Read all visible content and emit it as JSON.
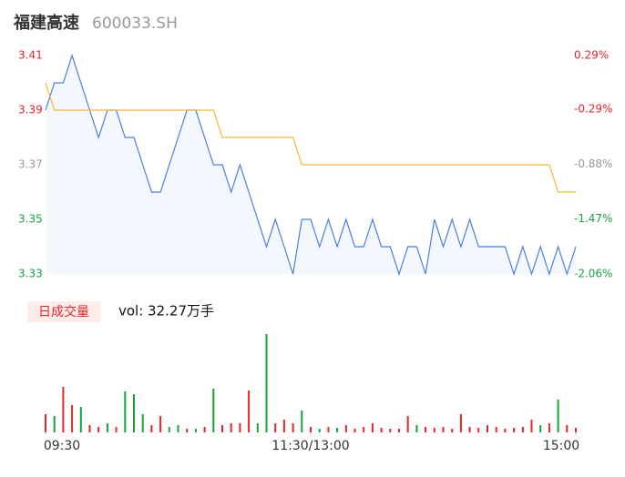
{
  "header": {
    "name": "福建高速",
    "code": "600033.SH"
  },
  "chart_data": [
    {
      "type": "line",
      "x": [
        0,
        4,
        8,
        12,
        16,
        20,
        24,
        28,
        32,
        36,
        40,
        44,
        48,
        52,
        56,
        60,
        64,
        68,
        72,
        76,
        80,
        84,
        88,
        92,
        96,
        100,
        104,
        108,
        112,
        116,
        120,
        124,
        128,
        132,
        136,
        140,
        144,
        148,
        152,
        156,
        160,
        164,
        168,
        172,
        176,
        180,
        184,
        188,
        192,
        196,
        200,
        204,
        208,
        212,
        216,
        220,
        224,
        228,
        232,
        236,
        240
      ],
      "series": [
        {
          "name": "price",
          "color": "#4a7fe0",
          "fill": "#f4f7fd",
          "values": [
            3.39,
            3.4,
            3.4,
            3.41,
            3.4,
            3.39,
            3.38,
            3.39,
            3.39,
            3.38,
            3.38,
            3.37,
            3.36,
            3.36,
            3.37,
            3.38,
            3.39,
            3.39,
            3.38,
            3.37,
            3.37,
            3.36,
            3.37,
            3.36,
            3.35,
            3.34,
            3.35,
            3.34,
            3.33,
            3.35,
            3.35,
            3.34,
            3.35,
            3.34,
            3.35,
            3.34,
            3.34,
            3.35,
            3.34,
            3.34,
            3.33,
            3.34,
            3.34,
            3.33,
            3.35,
            3.34,
            3.35,
            3.34,
            3.35,
            3.34,
            3.34,
            3.34,
            3.34,
            3.33,
            3.34,
            3.33,
            3.34,
            3.33,
            3.34,
            3.33,
            3.34
          ]
        },
        {
          "name": "average",
          "color": "#f5b82e",
          "values": [
            3.4,
            3.39,
            3.39,
            3.39,
            3.39,
            3.39,
            3.39,
            3.39,
            3.39,
            3.39,
            3.39,
            3.39,
            3.39,
            3.39,
            3.39,
            3.39,
            3.39,
            3.39,
            3.39,
            3.39,
            3.38,
            3.38,
            3.38,
            3.38,
            3.38,
            3.38,
            3.38,
            3.38,
            3.38,
            3.37,
            3.37,
            3.37,
            3.37,
            3.37,
            3.37,
            3.37,
            3.37,
            3.37,
            3.37,
            3.37,
            3.37,
            3.37,
            3.37,
            3.37,
            3.37,
            3.37,
            3.37,
            3.37,
            3.37,
            3.37,
            3.37,
            3.37,
            3.37,
            3.37,
            3.37,
            3.37,
            3.37,
            3.37,
            3.36,
            3.36,
            3.36
          ]
        }
      ],
      "xlim": [
        0,
        240
      ],
      "ylim": [
        3.33,
        3.41
      ],
      "yticks": [
        3.33,
        3.35,
        3.37,
        3.39,
        3.41
      ],
      "ytick_colors": [
        "#1aa33a",
        "#1aa33a",
        "#999999",
        "#e5262b",
        "#e5262b"
      ],
      "y2lim": [
        -2.06,
        0.29
      ],
      "y2ticks": [
        {
          "value": -2.06,
          "label": "-2.06%"
        },
        {
          "value": -1.47,
          "label": "-1.47%"
        },
        {
          "value": -0.88,
          "label": "-0.88%"
        },
        {
          "value": -0.29,
          "label": "-0.29%"
        },
        {
          "value": 0.29,
          "label": "0.29%"
        }
      ],
      "grid": false
    },
    {
      "type": "bar",
      "title": "日成交量",
      "subtitle": "vol: 32.27万手",
      "x": [
        0,
        4,
        8,
        12,
        16,
        20,
        24,
        28,
        32,
        36,
        40,
        44,
        48,
        52,
        56,
        60,
        64,
        68,
        72,
        76,
        80,
        84,
        88,
        92,
        96,
        100,
        104,
        108,
        112,
        116,
        120,
        124,
        128,
        132,
        136,
        140,
        144,
        148,
        152,
        156,
        160,
        164,
        168,
        172,
        176,
        180,
        184,
        188,
        192,
        196,
        200,
        204,
        208,
        212,
        216,
        220,
        224,
        228,
        232,
        236,
        240
      ],
      "values": [
        20,
        18,
        50,
        30,
        28,
        8,
        6,
        10,
        6,
        45,
        42,
        20,
        8,
        18,
        6,
        8,
        4,
        4,
        6,
        48,
        8,
        10,
        10,
        46,
        10,
        108,
        10,
        14,
        10,
        24,
        6,
        4,
        6,
        5,
        8,
        4,
        6,
        10,
        5,
        4,
        4,
        18,
        8,
        6,
        5,
        6,
        4,
        20,
        6,
        5,
        8,
        6,
        4,
        5,
        6,
        14,
        8,
        10,
        36,
        8,
        5
      ],
      "colors": [
        "#e5262b",
        "#1aa33a",
        "#e5262b",
        "#e5262b",
        "#1aa33a",
        "#e5262b",
        "#e5262b",
        "#1aa33a",
        "#e5262b",
        "#1aa33a",
        "#1aa33a",
        "#1aa33a",
        "#e5262b",
        "#e5262b",
        "#1aa33a",
        "#1aa33a",
        "#e5262b",
        "#1aa33a",
        "#e5262b",
        "#1aa33a",
        "#e5262b",
        "#e5262b",
        "#e5262b",
        "#e5262b",
        "#1aa33a",
        "#1aa33a",
        "#e5262b",
        "#e5262b",
        "#e5262b",
        "#1aa33a",
        "#e5262b",
        "#1aa33a",
        "#e5262b",
        "#1aa33a",
        "#e5262b",
        "#e5262b",
        "#e5262b",
        "#e5262b",
        "#e5262b",
        "#e5262b",
        "#e5262b",
        "#e5262b",
        "#1aa33a",
        "#e5262b",
        "#e5262b",
        "#e5262b",
        "#e5262b",
        "#e5262b",
        "#e5262b",
        "#e5262b",
        "#e5262b",
        "#e5262b",
        "#e5262b",
        "#e5262b",
        "#e5262b",
        "#e5262b",
        "#1aa33a",
        "#e5262b",
        "#1aa33a",
        "#e5262b",
        "#e5262b"
      ],
      "xlim": [
        0,
        240
      ],
      "ylim": [
        0,
        110
      ],
      "xticks": [
        {
          "value": 0,
          "label": "09:30"
        },
        {
          "value": 120,
          "label": "11:30/13:00"
        },
        {
          "value": 240,
          "label": "15:00"
        }
      ]
    }
  ]
}
